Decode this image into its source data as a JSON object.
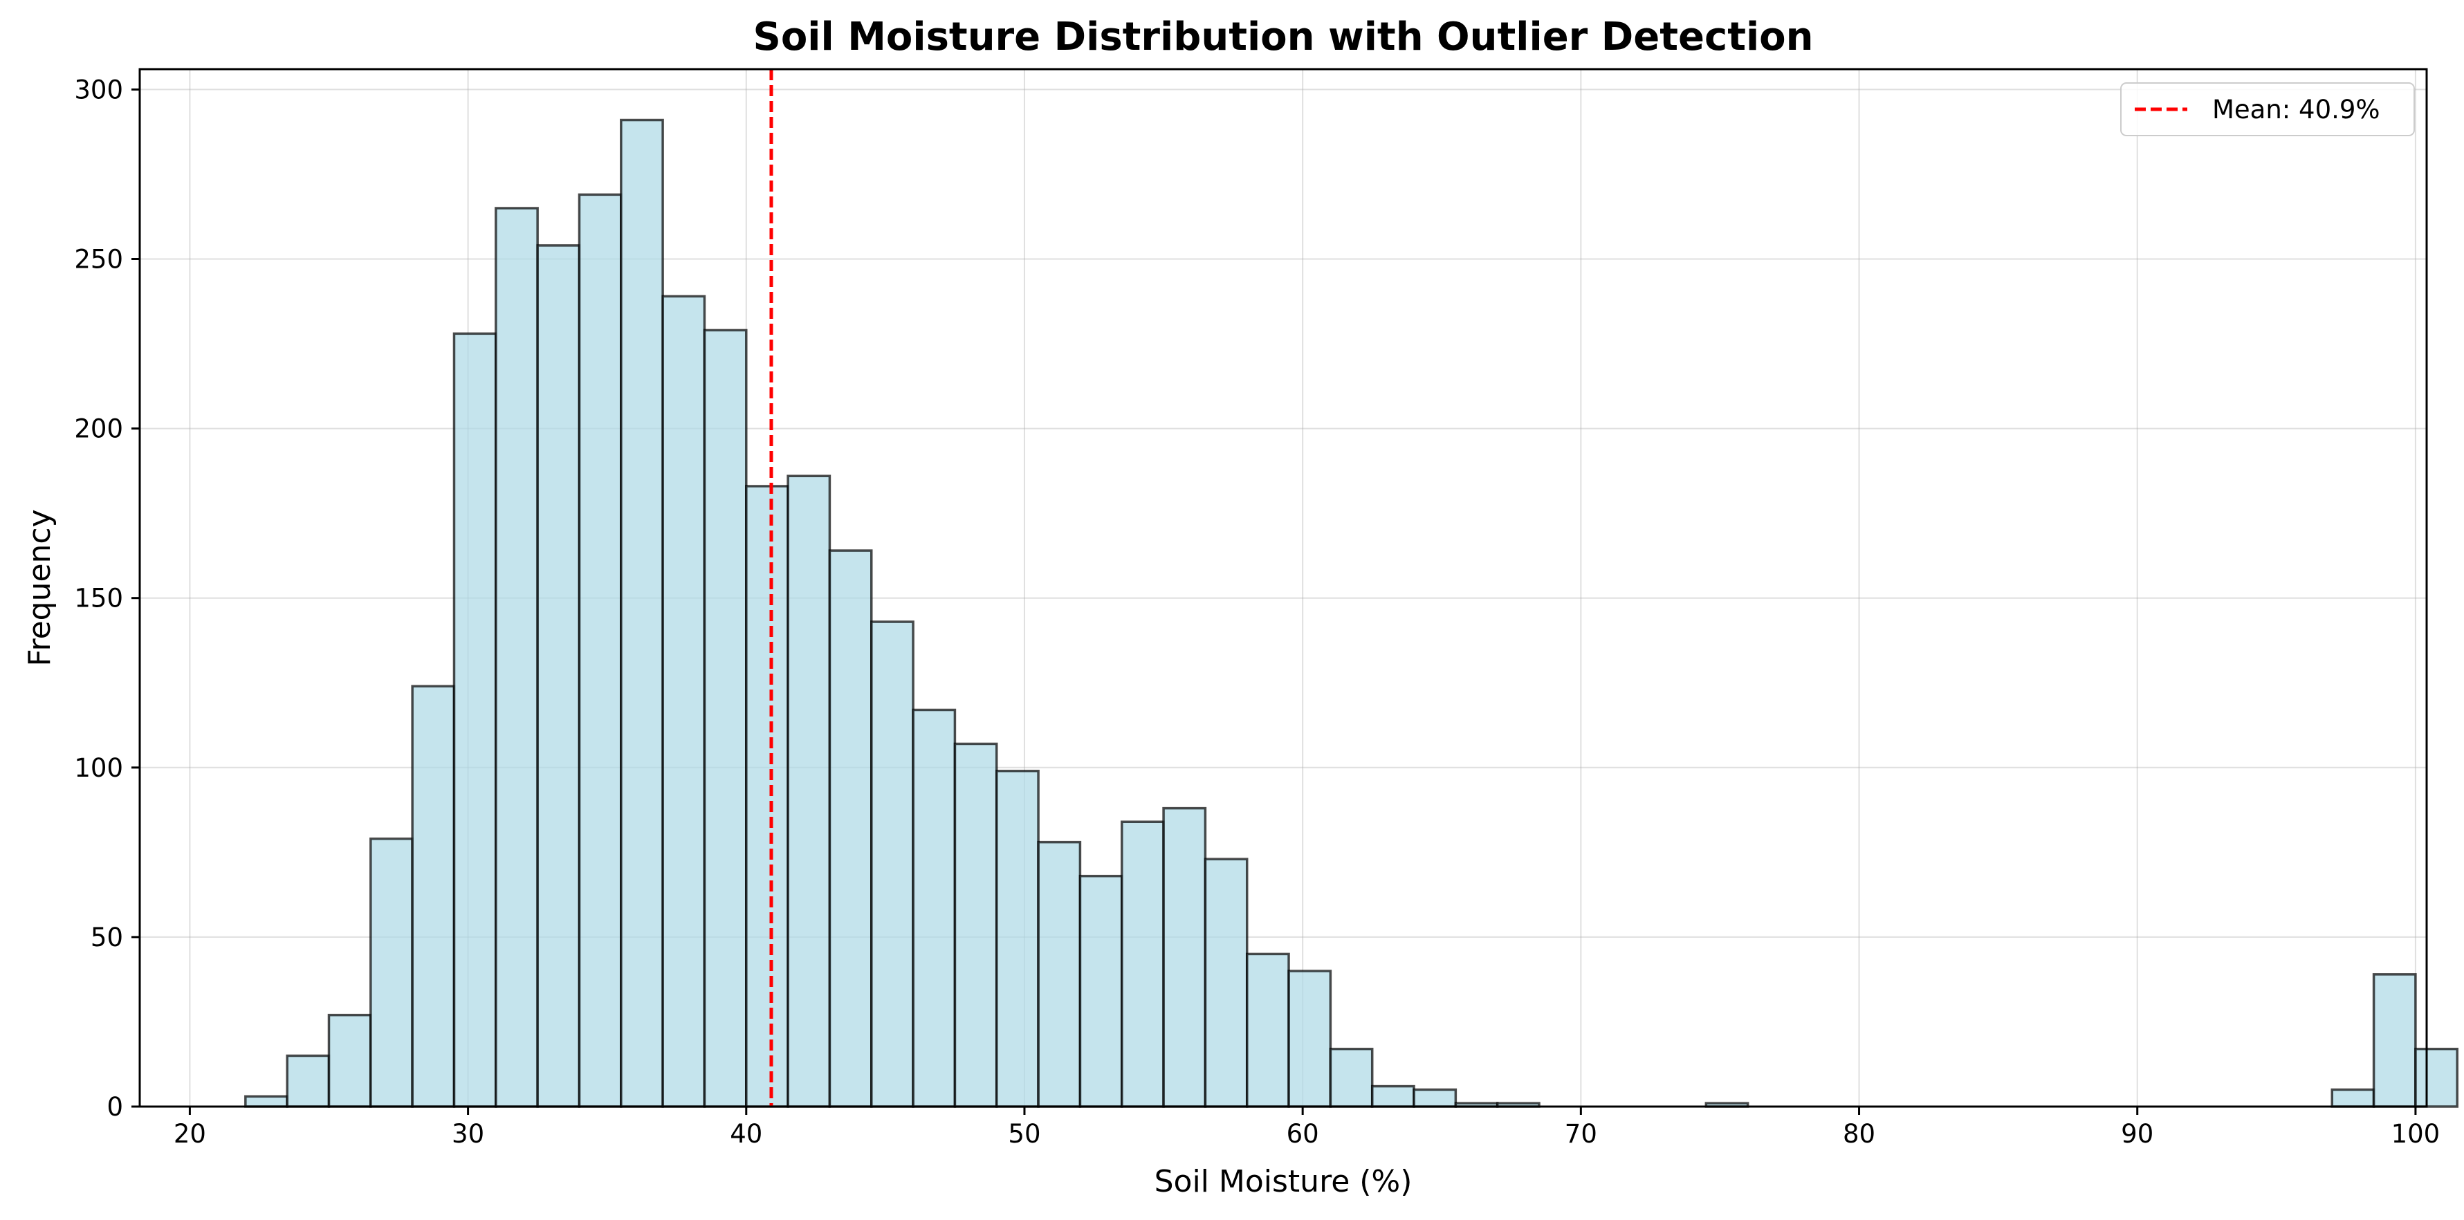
{
  "chart_data": {
    "type": "bar",
    "title": "Soil Moisture Distribution with Outlier Detection",
    "xlabel": "Soil Moisture (%)",
    "ylabel": "Frequency",
    "xlim": [
      18.2,
      100.4
    ],
    "ylim": [
      0,
      306
    ],
    "xticks": [
      20,
      30,
      40,
      50,
      60,
      70,
      80,
      90,
      100
    ],
    "yticks": [
      0,
      50,
      100,
      150,
      200,
      250,
      300
    ],
    "grid": true,
    "legend_position": "top-right",
    "bin_start": 22.0,
    "bin_width": 1.5,
    "values": [
      3,
      15,
      27,
      79,
      124,
      228,
      265,
      254,
      269,
      291,
      239,
      229,
      183,
      186,
      164,
      143,
      117,
      107,
      99,
      78,
      68,
      84,
      88,
      73,
      45,
      40,
      17,
      6,
      5,
      1,
      1,
      0,
      0,
      0,
      0,
      1,
      0,
      0,
      0,
      0,
      0,
      0,
      0,
      0,
      0,
      0,
      0,
      0,
      0,
      0,
      5,
      39,
      17
    ],
    "mean_line": {
      "value": 40.9,
      "label": "Mean: 40.9%"
    },
    "colors": {
      "bar_fill": "#add8e6",
      "bar_edge": "#000000",
      "mean_line": "#ff0000",
      "grid": "#b0b0b0"
    }
  }
}
